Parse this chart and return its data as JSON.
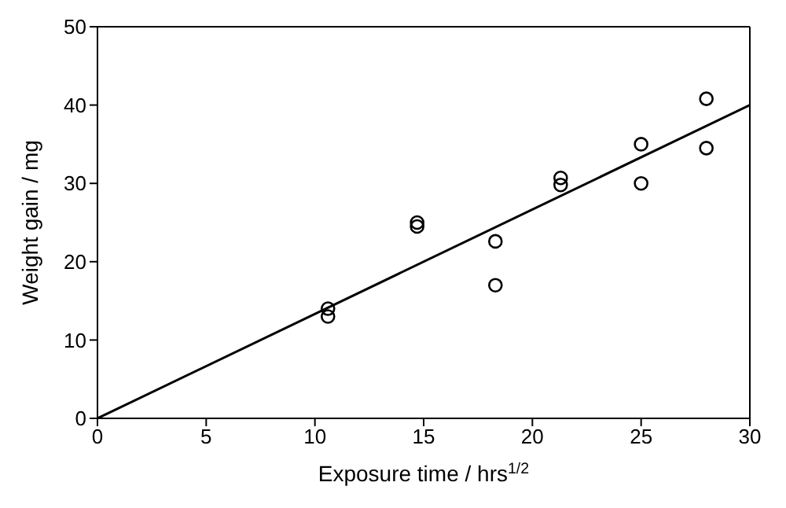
{
  "chart_data": {
    "type": "scatter",
    "xlabel": "Exposure time / hrs$^{1/2}$",
    "ylabel": "Weight gain / mg",
    "xlim": [
      0,
      30
    ],
    "xticks": [
      0,
      5,
      10,
      15,
      20,
      25,
      30
    ],
    "ylim": [
      0,
      50
    ],
    "yticks": [
      0,
      10,
      20,
      30,
      40,
      50
    ],
    "marker": "circle",
    "series": [
      {
        "color": "#000000",
        "x": [
          10.6,
          10.6,
          14.7,
          14.7,
          18.3,
          18.3,
          21.3,
          21.3,
          25,
          25,
          28,
          28
        ],
        "values": [
          14,
          13,
          25,
          24.5,
          22.6,
          17,
          30.7,
          29.8,
          35,
          30,
          40.8,
          34.5
        ]
      },
      {
        "type": "line",
        "color": "#000000",
        "x": [
          0,
          30
        ],
        "values": [
          0,
          40
        ],
        "marker": "none"
      }
    ]
  }
}
